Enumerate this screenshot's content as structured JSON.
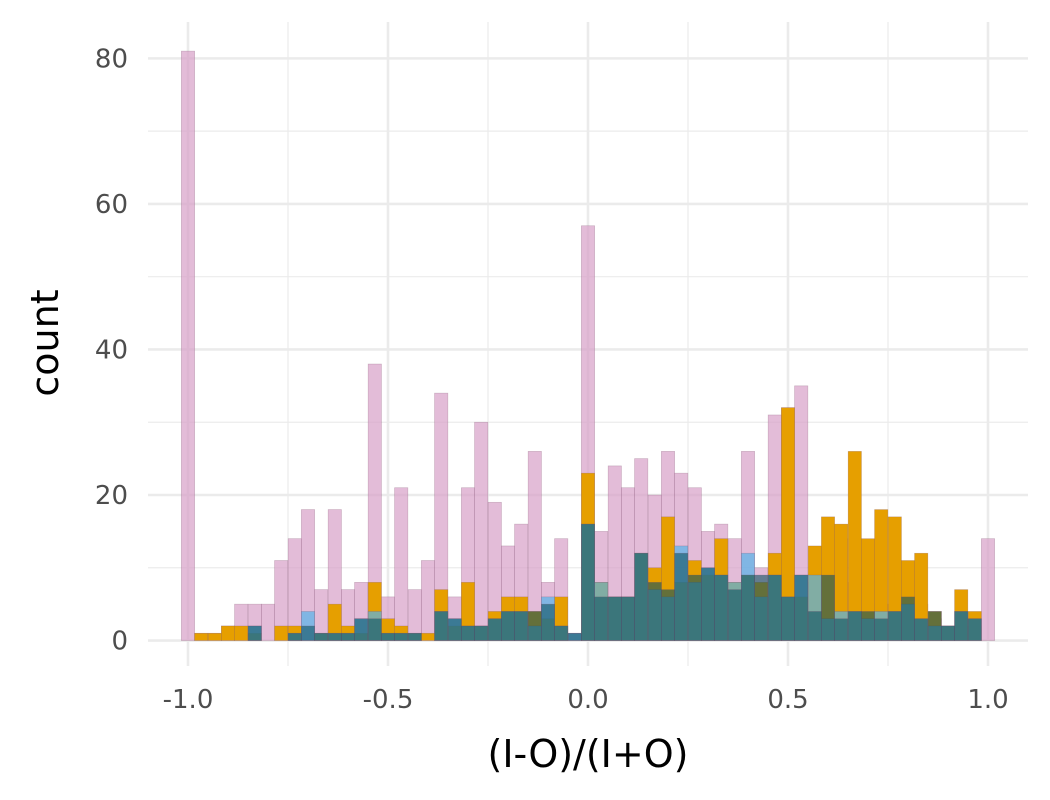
{
  "chart_data": {
    "type": "bar",
    "xlabel": "(I-O)/(I+O)",
    "ylabel": "count",
    "xlim": [
      -1.1,
      1.1
    ],
    "ylim": [
      -3.5,
      85
    ],
    "x_ticks": [
      -1.0,
      -0.5,
      0.0,
      0.5,
      1.0
    ],
    "x_tick_labels": [
      "-1.0",
      "-0.5",
      "0.0",
      "0.5",
      "1.0"
    ],
    "y_ticks": [
      0,
      20,
      40,
      60,
      80
    ],
    "y_tick_labels": [
      "0",
      "20",
      "40",
      "60",
      "80"
    ],
    "grid": true,
    "bin_width": 0.0333,
    "x": [
      -1.0,
      -0.967,
      -0.933,
      -0.9,
      -0.867,
      -0.833,
      -0.8,
      -0.767,
      -0.733,
      -0.7,
      -0.667,
      -0.633,
      -0.6,
      -0.567,
      -0.533,
      -0.5,
      -0.467,
      -0.433,
      -0.4,
      -0.367,
      -0.333,
      -0.3,
      -0.267,
      -0.233,
      -0.2,
      -0.167,
      -0.133,
      -0.1,
      -0.067,
      -0.033,
      0.0,
      0.033,
      0.067,
      0.1,
      0.133,
      0.167,
      0.2,
      0.233,
      0.267,
      0.3,
      0.333,
      0.367,
      0.4,
      0.433,
      0.467,
      0.5,
      0.533,
      0.567,
      0.6,
      0.633,
      0.667,
      0.7,
      0.733,
      0.767,
      0.8,
      0.833,
      0.867,
      0.9,
      0.933,
      0.967,
      1.0
    ],
    "series": [
      {
        "color": "#d79fc8",
        "opacity": 0.7,
        "values": [
          81,
          1,
          1,
          2,
          5,
          5,
          5,
          11,
          14,
          18,
          7,
          18,
          7,
          8,
          38,
          6,
          21,
          7,
          11,
          34,
          6,
          21,
          30,
          19,
          13,
          16,
          26,
          8,
          14,
          1,
          57,
          15,
          24,
          21,
          25,
          20,
          26,
          23,
          21,
          15,
          16,
          14,
          26,
          10,
          31,
          32,
          35,
          8,
          5,
          14,
          8,
          8,
          5,
          5,
          6,
          5,
          3,
          2,
          2,
          2,
          14
        ]
      },
      {
        "color": "#e69f00",
        "opacity": 1.0,
        "values": [
          0,
          1,
          1,
          2,
          2,
          1,
          0,
          2,
          2,
          0,
          1,
          5,
          2,
          1,
          8,
          3,
          2,
          1,
          1,
          7,
          2,
          8,
          2,
          4,
          6,
          6,
          4,
          3,
          6,
          0,
          23,
          8,
          6,
          6,
          12,
          10,
          17,
          8,
          11,
          9,
          14,
          8,
          9,
          8,
          12,
          32,
          6,
          13,
          17,
          16,
          26,
          14,
          18,
          17,
          11,
          12,
          4,
          2,
          7,
          4,
          0
        ]
      },
      {
        "color": "#56b4e9",
        "opacity": 0.7,
        "values": [
          0,
          0,
          0,
          0,
          0,
          2,
          0,
          0,
          1,
          4,
          1,
          1,
          1,
          3,
          4,
          1,
          1,
          1,
          0,
          4,
          3,
          2,
          2,
          3,
          4,
          4,
          2,
          6,
          2,
          1,
          16,
          8,
          6,
          6,
          12,
          7,
          6,
          13,
          8,
          10,
          9,
          8,
          12,
          6,
          9,
          6,
          9,
          9,
          3,
          4,
          4,
          3,
          4,
          4,
          5,
          3,
          2,
          2,
          4,
          3,
          0
        ]
      },
      {
        "color": "#0d5160",
        "opacity": 0.6,
        "values": [
          0,
          0,
          0,
          0,
          0,
          2,
          0,
          0,
          1,
          2,
          1,
          1,
          1,
          3,
          3,
          1,
          1,
          1,
          0,
          4,
          3,
          2,
          2,
          3,
          4,
          4,
          4,
          5,
          2,
          1,
          16,
          6,
          6,
          6,
          12,
          8,
          7,
          12,
          9,
          10,
          9,
          7,
          9,
          9,
          9,
          6,
          9,
          4,
          9,
          3,
          4,
          4,
          3,
          4,
          6,
          3,
          4,
          2,
          4,
          3,
          0
        ]
      }
    ]
  }
}
